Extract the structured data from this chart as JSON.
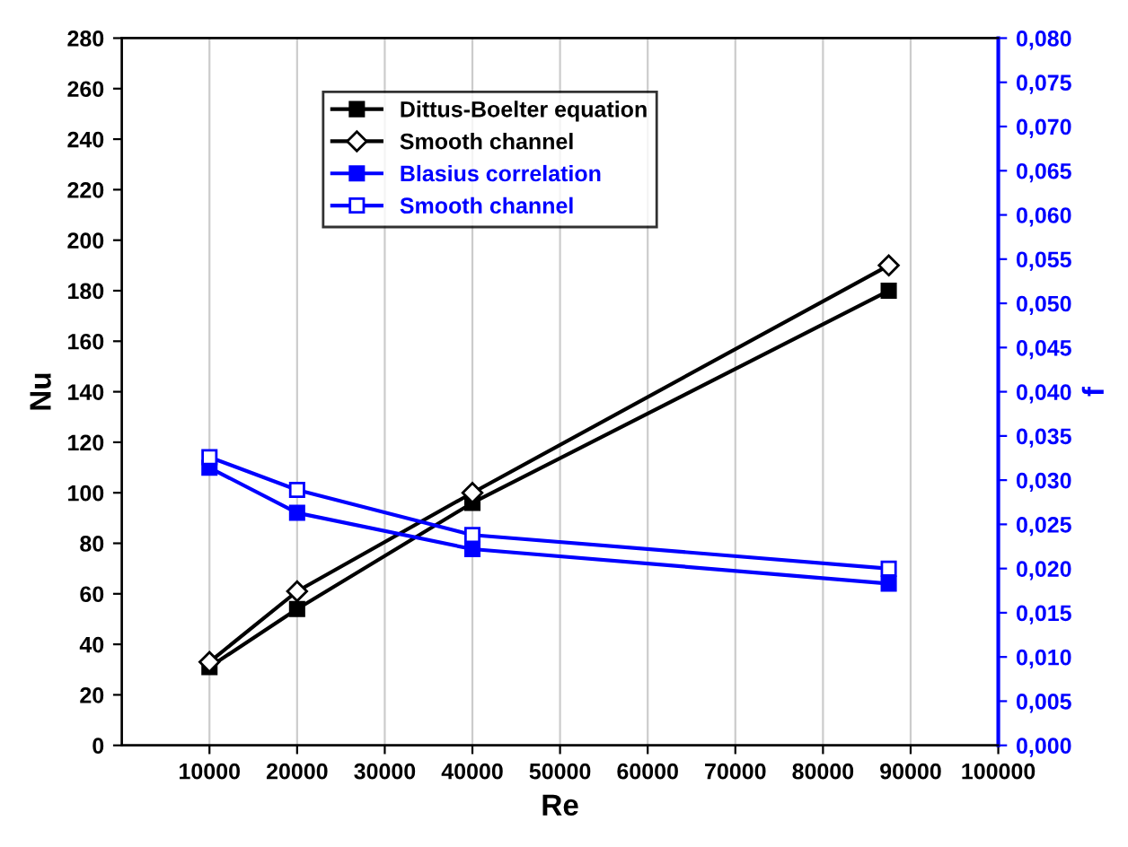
{
  "chart_data": {
    "type": "line",
    "xlabel": "Re",
    "ylabel": "Nu",
    "y2label": "f",
    "x": [
      10000,
      20000,
      40000,
      87500
    ],
    "series": [
      {
        "name": "Dittus-Boelter equation",
        "color": "#000000",
        "values": [
          31,
          54,
          96,
          180
        ],
        "marker": "square"
      },
      {
        "name": "Smooth channel",
        "color": "#000000",
        "values": [
          33,
          61,
          100,
          190
        ],
        "marker": "diamond"
      },
      {
        "name": "Blasius correlation",
        "color": "#0000ff",
        "values": [
          0.0314,
          0.0263,
          0.0222,
          0.0183
        ],
        "marker": "square",
        "axis": "y2"
      },
      {
        "name": "Smooth channel",
        "color": "#0000ff",
        "values": [
          0.0326,
          0.0289,
          0.0238,
          0.02
        ],
        "marker": "square",
        "axis": "y2"
      }
    ],
    "xlim": [
      0,
      100000
    ],
    "xticks": [
      10000,
      20000,
      30000,
      40000,
      50000,
      60000,
      70000,
      80000,
      90000,
      100000
    ],
    "ylim": [
      0,
      280
    ],
    "yticks": [
      0,
      20,
      40,
      60,
      80,
      100,
      120,
      140,
      160,
      180,
      200,
      220,
      240,
      260,
      280
    ],
    "y2lim": [
      0,
      0.08
    ],
    "y2ticks": [
      {
        "value": 0,
        "label": "0,000"
      },
      {
        "value": 0.005,
        "label": "0,005"
      },
      {
        "value": 0.01,
        "label": "0,010"
      },
      {
        "value": 0.015,
        "label": "0,015"
      },
      {
        "value": 0.02,
        "label": "0,020"
      },
      {
        "value": 0.025,
        "label": "0,025"
      },
      {
        "value": 0.03,
        "label": "0,030"
      },
      {
        "value": 0.035,
        "label": "0,035"
      },
      {
        "value": 0.04,
        "label": "0,040"
      },
      {
        "value": 0.045,
        "label": "0,045"
      },
      {
        "value": 0.05,
        "label": "0,050"
      },
      {
        "value": 0.055,
        "label": "0,055"
      },
      {
        "value": 0.06,
        "label": "0,060"
      },
      {
        "value": 0.065,
        "label": "0,065"
      },
      {
        "value": 0.07,
        "label": "0,070"
      },
      {
        "value": 0.075,
        "label": "0,075"
      },
      {
        "value": 0.08,
        "label": "0,080"
      }
    ],
    "grid": "x",
    "legend": "top",
    "line_style": "solid"
  }
}
